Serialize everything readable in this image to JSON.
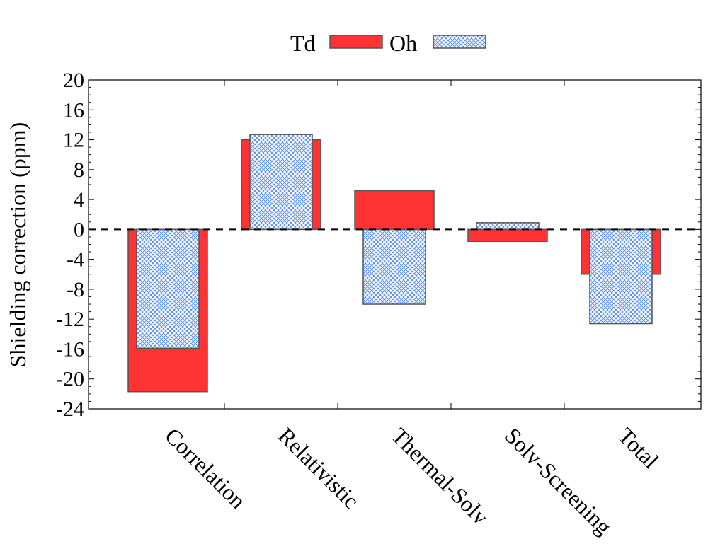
{
  "chart_data": {
    "type": "bar",
    "title": "",
    "xlabel": "",
    "ylabel": "Shielding correction (ppm)",
    "ylim": [
      -24,
      20
    ],
    "yticks": [
      20,
      16,
      12,
      8,
      4,
      0,
      -4,
      -8,
      -12,
      -16,
      -20,
      -24
    ],
    "categories": [
      "Correlation",
      "Relativistic",
      "Thermal-Solv",
      "Solv-Screening",
      "Total"
    ],
    "series": [
      {
        "name": "Td",
        "values": [
          -21.7,
          12.0,
          5.2,
          -1.6,
          -6.0
        ],
        "color": "#ff3333",
        "pattern": "solid"
      },
      {
        "name": "Oh",
        "values": [
          -15.9,
          12.7,
          -10.0,
          0.9,
          -12.6
        ],
        "color": "#a8c8f8",
        "pattern": "crosshatch"
      }
    ],
    "zero_line": "dashed",
    "legend": "top-center"
  }
}
